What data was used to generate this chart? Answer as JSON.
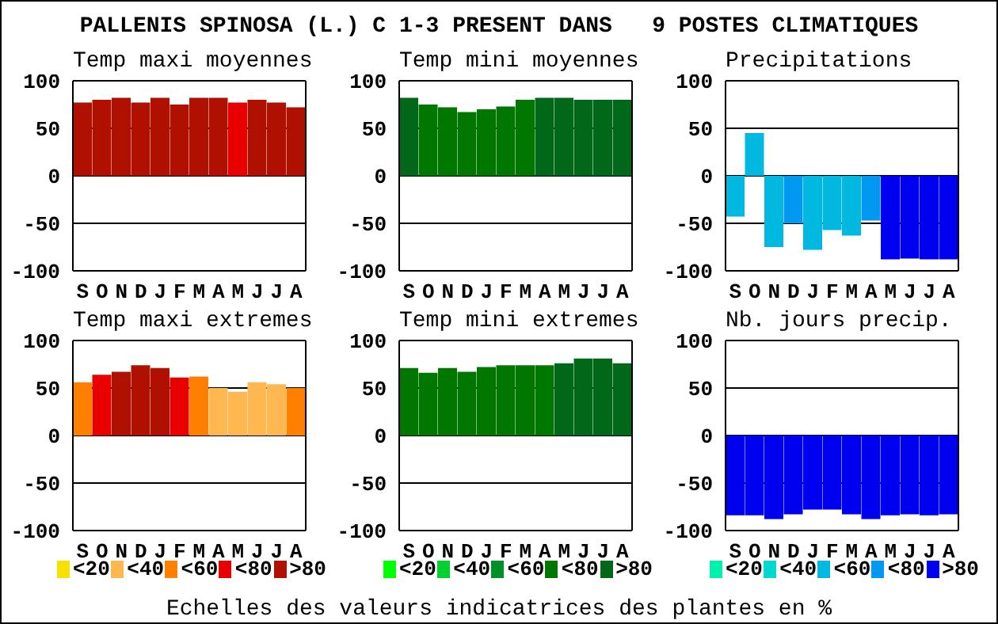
{
  "chart_data": [
    {
      "type": "other",
      "title": "PALLENIS SPINOSA (L.) C 1-3 PRESENT DANS   9 POSTES CLIMATIQUES",
      "annotations": [
        "Echelles des valeurs indicatrices des plantes en %"
      ]
    },
    {
      "type": "bar",
      "title": "Temp maxi moyennes",
      "categories": [
        "S",
        "O",
        "N",
        "D",
        "J",
        "F",
        "M",
        "A",
        "M",
        "J",
        "J",
        "A"
      ],
      "values": [
        77,
        80,
        82,
        77,
        82,
        75,
        82,
        82,
        77,
        80,
        77,
        72
      ],
      "colors": [
        "#b01000",
        "#b01000",
        "#b01000",
        "#b01000",
        "#b01000",
        "#b01000",
        "#b01000",
        "#b01000",
        "#e80000",
        "#b01000",
        "#b01000",
        "#b01000"
      ],
      "ylim": [
        -100,
        100
      ],
      "yticks": [
        -100,
        -50,
        0,
        50,
        100
      ],
      "grid": "y"
    },
    {
      "type": "bar",
      "title": "Temp mini moyennes",
      "categories": [
        "S",
        "O",
        "N",
        "D",
        "J",
        "F",
        "M",
        "A",
        "M",
        "J",
        "J",
        "A"
      ],
      "values": [
        82,
        75,
        72,
        67,
        70,
        73,
        80,
        82,
        82,
        80,
        80,
        80
      ],
      "colors": [
        "#006818",
        "#007800",
        "#007800",
        "#007800",
        "#007800",
        "#007800",
        "#007800",
        "#006818",
        "#006818",
        "#006818",
        "#006818",
        "#006818"
      ],
      "ylim": [
        -100,
        100
      ],
      "yticks": [
        -100,
        -50,
        0,
        50,
        100
      ],
      "grid": "y"
    },
    {
      "type": "bar",
      "title": "Precipitations",
      "categories": [
        "S",
        "O",
        "N",
        "D",
        "J",
        "F",
        "M",
        "A",
        "M",
        "J",
        "J",
        "A"
      ],
      "values": [
        -43,
        45,
        -75,
        -50,
        -78,
        -57,
        -63,
        -47,
        -88,
        -87,
        -88,
        -88
      ],
      "colors": [
        "#00b8e0",
        "#00b8e0",
        "#00b8e0",
        "#0098f0",
        "#00b8e0",
        "#00b8e0",
        "#00b8e0",
        "#0098f0",
        "#0000f0",
        "#0000f0",
        "#0000f0",
        "#0000f0"
      ],
      "ylim": [
        -100,
        100
      ],
      "yticks": [
        -100,
        -50,
        0,
        50,
        100
      ],
      "grid": "y"
    },
    {
      "type": "bar",
      "title": "Temp maxi extremes",
      "categories": [
        "S",
        "O",
        "N",
        "D",
        "J",
        "F",
        "M",
        "A",
        "M",
        "J",
        "J",
        "A"
      ],
      "stacked": true,
      "legend": "bottom",
      "ylim": [
        -100,
        100
      ],
      "yticks": [
        -100,
        -50,
        0,
        50,
        100
      ],
      "grid": "y",
      "series": [
        {
          "name": "<20",
          "color": "#f8e000",
          "values": [
            null,
            null,
            null,
            null,
            null,
            null,
            null,
            null,
            null,
            null,
            null,
            null
          ]
        },
        {
          "name": "<40",
          "color": "#ffb850",
          "values": [
            null,
            null,
            null,
            null,
            null,
            null,
            null,
            50,
            46,
            56,
            54,
            null
          ]
        },
        {
          "name": "<60",
          "color": "#ff8000",
          "values": [
            56,
            null,
            null,
            null,
            null,
            null,
            62,
            null,
            null,
            null,
            null,
            50
          ]
        },
        {
          "name": "<80",
          "color": "#e80000",
          "values": [
            null,
            64,
            null,
            null,
            null,
            61,
            null,
            null,
            null,
            null,
            null,
            null
          ]
        },
        {
          "name": ">80",
          "color": "#b01000",
          "values": [
            null,
            null,
            67,
            74,
            71,
            null,
            null,
            null,
            null,
            null,
            null,
            null
          ]
        }
      ]
    },
    {
      "type": "bar",
      "title": "Temp mini extremes",
      "categories": [
        "S",
        "O",
        "N",
        "D",
        "J",
        "F",
        "M",
        "A",
        "M",
        "J",
        "J",
        "A"
      ],
      "stacked": true,
      "legend": "bottom",
      "ylim": [
        -100,
        100
      ],
      "yticks": [
        -100,
        -50,
        0,
        50,
        100
      ],
      "grid": "y",
      "series": [
        {
          "name": "<20",
          "color": "#00ff00",
          "values": [
            null,
            null,
            null,
            null,
            null,
            null,
            null,
            null,
            null,
            null,
            null,
            null
          ]
        },
        {
          "name": "<40",
          "color": "#00d030",
          "values": [
            null,
            null,
            null,
            null,
            null,
            null,
            null,
            null,
            null,
            null,
            null,
            null
          ]
        },
        {
          "name": "<60",
          "color": "#009028",
          "values": [
            null,
            null,
            null,
            null,
            null,
            null,
            null,
            null,
            null,
            null,
            null,
            null
          ]
        },
        {
          "name": "<80",
          "color": "#007800",
          "values": [
            71,
            66,
            71,
            67,
            72,
            74,
            74,
            74,
            null,
            null,
            null,
            null
          ]
        },
        {
          "name": ">80",
          "color": "#006818",
          "values": [
            null,
            null,
            null,
            null,
            null,
            null,
            null,
            null,
            76,
            81,
            81,
            76
          ]
        }
      ]
    },
    {
      "type": "bar",
      "title": "Nb. jours precip.",
      "categories": [
        "S",
        "O",
        "N",
        "D",
        "J",
        "F",
        "M",
        "A",
        "M",
        "J",
        "J",
        "A"
      ],
      "stacked": true,
      "legend": "bottom",
      "ylim": [
        -100,
        100
      ],
      "yticks": [
        -100,
        -50,
        0,
        50,
        100
      ],
      "grid": "y",
      "series": [
        {
          "name": "<20",
          "color": "#00f0b0",
          "values": [
            null,
            null,
            null,
            null,
            null,
            null,
            null,
            null,
            null,
            null,
            null,
            null
          ]
        },
        {
          "name": "<40",
          "color": "#00d8d0",
          "values": [
            null,
            null,
            null,
            null,
            null,
            null,
            null,
            null,
            null,
            null,
            null,
            null
          ]
        },
        {
          "name": "<60",
          "color": "#00b8e0",
          "values": [
            null,
            null,
            null,
            null,
            null,
            null,
            null,
            null,
            null,
            null,
            null,
            null
          ]
        },
        {
          "name": "<80",
          "color": "#0098f0",
          "values": [
            null,
            null,
            null,
            null,
            null,
            null,
            null,
            null,
            null,
            null,
            null,
            null
          ]
        },
        {
          "name": ">80",
          "color": "#0000f0",
          "values": [
            -84,
            -84,
            -88,
            -83,
            -78,
            -78,
            -83,
            -88,
            -84,
            -83,
            -84,
            -83
          ]
        }
      ]
    }
  ]
}
